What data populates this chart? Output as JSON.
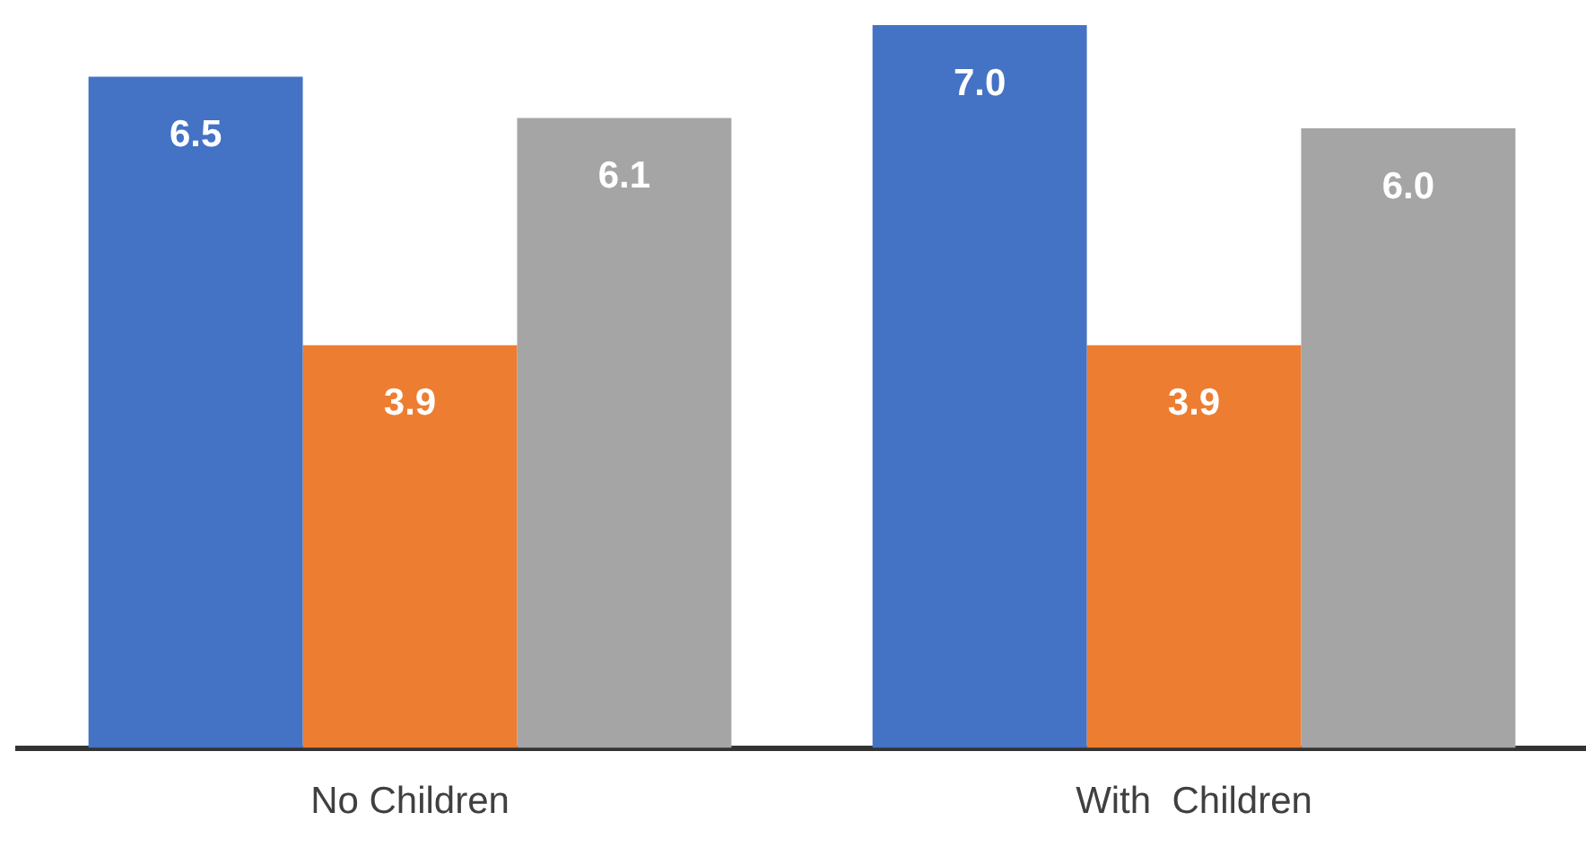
{
  "chart_data": {
    "type": "bar",
    "categories": [
      "No Children",
      "With  Children"
    ],
    "series": [
      {
        "color": "#4472c4",
        "values": [
          6.5,
          7.0
        ],
        "value_labels": [
          "6.5",
          "7.0"
        ]
      },
      {
        "color": "#ed7d31",
        "values": [
          3.9,
          3.9
        ],
        "value_labels": [
          "3.9",
          "3.9"
        ]
      },
      {
        "color": "#a5a5a5",
        "values": [
          6.1,
          6.0
        ],
        "value_labels": [
          "6.1",
          "6.0"
        ]
      }
    ],
    "grid": false,
    "legend": false
  }
}
